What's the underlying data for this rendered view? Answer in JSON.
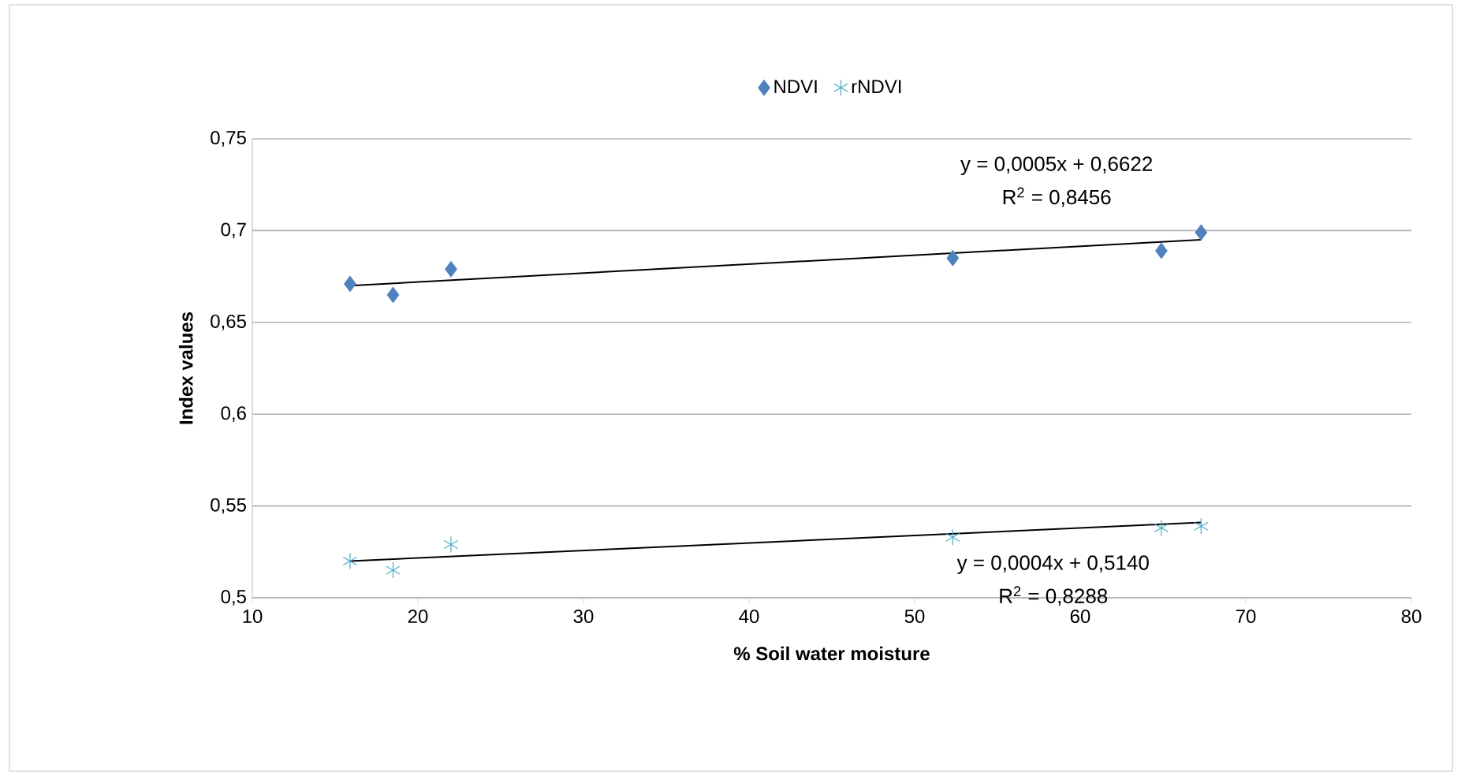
{
  "chart_data": {
    "type": "scatter",
    "xlabel": "% Soil water moisture",
    "ylabel": "Index values",
    "xlim": [
      10,
      80
    ],
    "xticks": [
      10,
      20,
      30,
      40,
      50,
      60,
      70,
      80
    ],
    "ylim": [
      0.5,
      0.75
    ],
    "yticks": [
      {
        "value": 0.5,
        "label": "0,5"
      },
      {
        "value": 0.55,
        "label": "0,55"
      },
      {
        "value": 0.6,
        "label": "0,6"
      },
      {
        "value": 0.65,
        "label": "0,65"
      },
      {
        "value": 0.7,
        "label": "0,7"
      },
      {
        "value": 0.75,
        "label": "0,75"
      }
    ],
    "grid": "y",
    "legend": "top",
    "series": [
      {
        "name": "NDVI",
        "marker": "diamond",
        "color": "#4f81bd",
        "x": [
          15.9,
          18.5,
          22.0,
          52.3,
          64.9,
          67.3
        ],
        "values": [
          0.671,
          0.665,
          0.679,
          0.685,
          0.689,
          0.699
        ]
      },
      {
        "name": "rNDVI",
        "marker": "cross",
        "color": "#4bacc6",
        "x": [
          15.9,
          18.5,
          22.0,
          52.3,
          64.9,
          67.3
        ],
        "values": [
          0.52,
          0.515,
          0.529,
          0.533,
          0.538,
          0.539
        ]
      },
      {
        "type": "line",
        "marker": "none",
        "color": "#000000",
        "x": [
          15.9,
          67.3
        ],
        "values": [
          0.67,
          0.695
        ]
      },
      {
        "type": "line",
        "marker": "none",
        "color": "#000000",
        "x": [
          15.9,
          67.3
        ],
        "values": [
          0.52,
          0.541
        ]
      }
    ],
    "annotations": [
      "y = 0,0005x + 0,6622",
      "R$^{2}$ = 0,8456",
      "y = 0,0004x + 0,5140",
      "R$^{2}$ = 0,8288"
    ]
  }
}
